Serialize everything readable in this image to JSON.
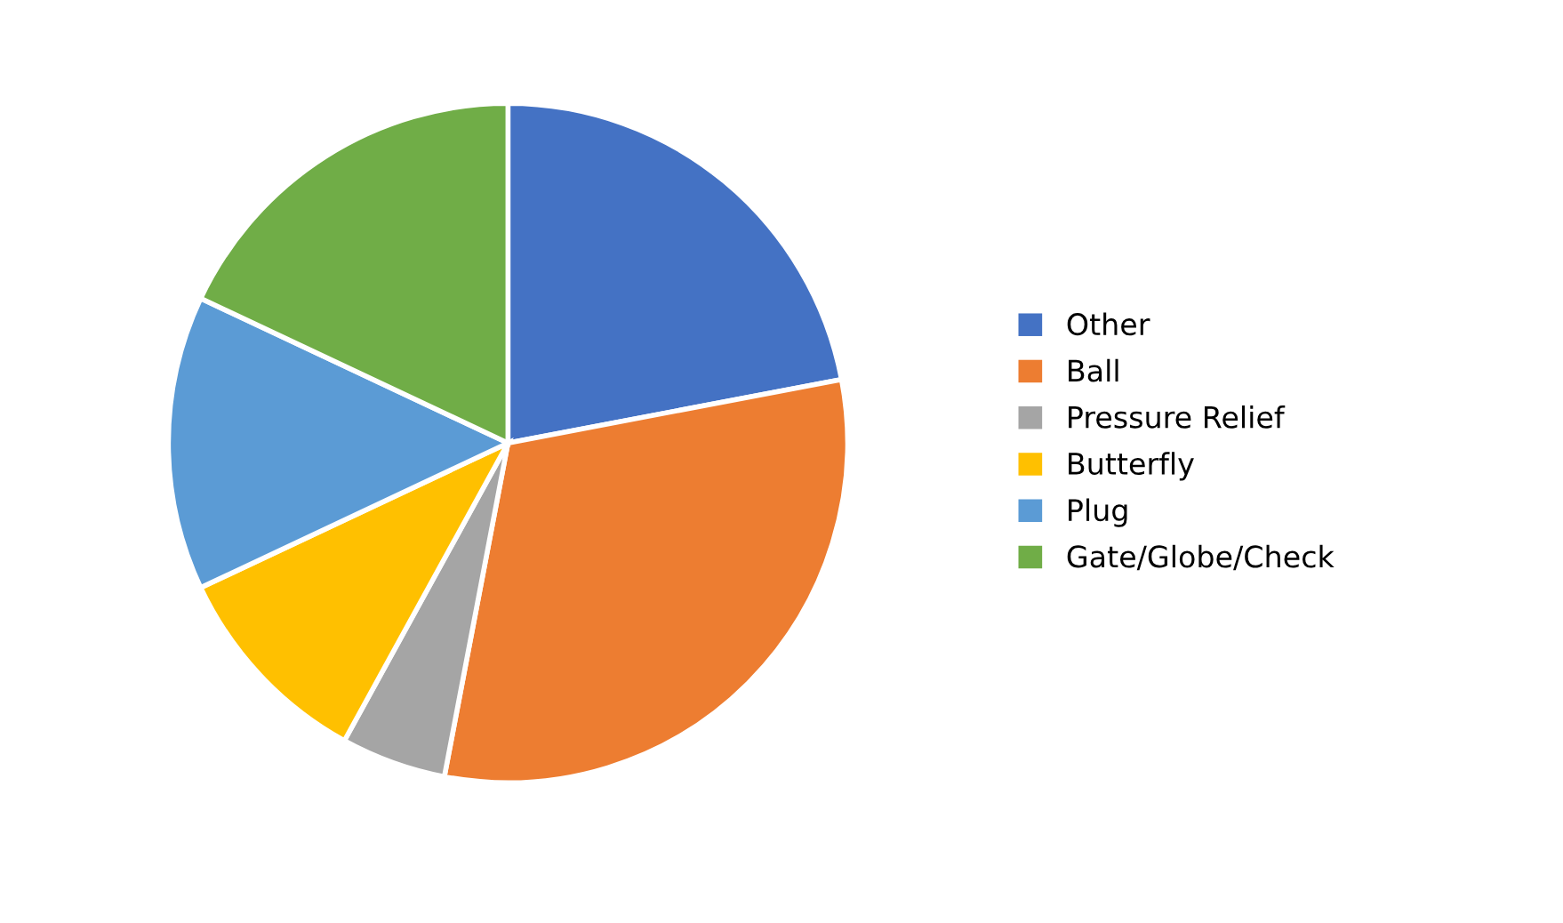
{
  "chart_data": {
    "type": "pie",
    "categories": [
      "Other",
      "Ball",
      "Pressure Relief",
      "Butterfly",
      "Plug",
      "Gate/Globe/Check"
    ],
    "values": [
      22,
      31,
      5,
      10,
      14,
      18
    ],
    "colors": [
      "#4472c4",
      "#ed7d31",
      "#a5a5a5",
      "#ffc000",
      "#5b9bd5",
      "#70ad47"
    ],
    "legend": "right"
  }
}
